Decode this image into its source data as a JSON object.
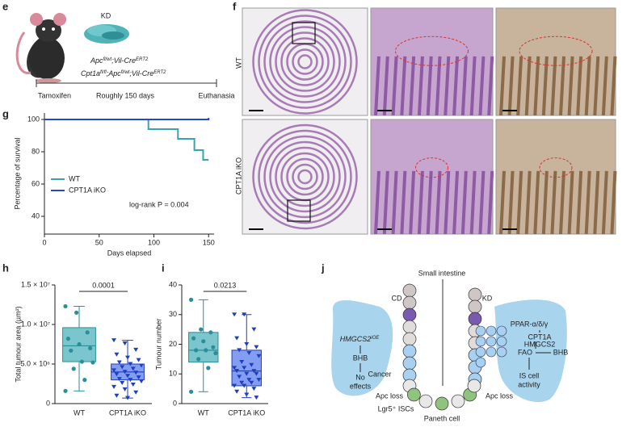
{
  "panel_labels": [
    "e",
    "f",
    "g",
    "h",
    "i",
    "j"
  ],
  "e": {
    "kd": "KD",
    "genotype_1": [
      "Apc",
      "fl/wt",
      ";Vil-Cre",
      "ERT2"
    ],
    "genotype_2": [
      "Cpt1a",
      "fl/fl",
      ";Apc",
      "fl/wt",
      ";Vil-Cre",
      "ERT2"
    ],
    "timeline": [
      "Tamoxifen",
      "Roughly 150 days",
      "Euthanasia"
    ]
  },
  "f": {
    "row_labels": [
      "WT",
      "CPT1A iKO"
    ]
  },
  "j": {
    "title": "Small intestine",
    "cd": "CD",
    "kd": "KD",
    "hmgcs2_ioe": [
      "HMGCS2",
      "iOE"
    ],
    "bhb_left": "BHB",
    "no_effects": [
      "No",
      "effects"
    ],
    "cancer": "Cancer",
    "apc_loss_left": "Apc loss",
    "lgr5": "Lgr5⁺ ISCs",
    "paneth": "Paneth cell",
    "apc_loss_right": "Apc loss",
    "ppar": "PPAR-α/δ/γ",
    "cpt1a": "CPT1A",
    "hmgcs2": "HMGCS2",
    "fao": "FAO",
    "bhb_right": "BHB",
    "is_cell": [
      "IS cell",
      "activity"
    ]
  },
  "chart_data": [
    {
      "type": "line",
      "x_label": "Days elapsed",
      "y_label": "Percentage of survival",
      "xlim": [
        0,
        155
      ],
      "ylim": [
        29,
        104
      ],
      "xticks": [
        0,
        50,
        100,
        150
      ],
      "yticks": [
        40,
        60,
        80,
        100
      ],
      "annotation": "log-rank P = 0.004",
      "series": [
        {
          "name": "WT",
          "color": "#3aa3ad",
          "x": [
            0,
            95,
            95,
            122,
            122,
            137,
            137,
            145,
            145,
            150
          ],
          "values": [
            100,
            100,
            94,
            94,
            88,
            88,
            81,
            81,
            75,
            75
          ]
        },
        {
          "name": "CPT1A iKO",
          "color": "#2846c8",
          "x": [
            0,
            150,
            150
          ],
          "values": [
            100,
            100,
            101
          ]
        }
      ]
    },
    {
      "type": "box",
      "y_label": "Total tumour area (µm²)",
      "categories": [
        "WT",
        "CPT1A iKO"
      ],
      "ylim": [
        0,
        15000000
      ],
      "yticks": [
        0,
        {
          "value": 5000000,
          "label": "5.0 × 10⁶"
        },
        {
          "value": 10000000,
          "label": "1.0 × 10⁷"
        },
        {
          "value": 15000000,
          "label": "1.5 × 10⁷"
        }
      ],
      "annotation": "0.0001",
      "boxes": [
        {
          "color": "#2a8f99",
          "fill": "#4fb3bc",
          "min": 1600000,
          "q1": 5300000,
          "median": 7300000,
          "q3": 9600000,
          "max": 12300000,
          "points": [
            12300000,
            11500000,
            9000000,
            8200000,
            7500000,
            7000000,
            6700000,
            5300000,
            5200000,
            4400000,
            3000000,
            1600000
          ]
        },
        {
          "color": "#1f3fbf",
          "fill": "#5b7cf0",
          "min": 700000,
          "q1": 3000000,
          "median": 4000000,
          "q3": 5000000,
          "max": 8000000,
          "points": [
            8000000,
            7600000,
            6800000,
            6200000,
            5800000,
            5500000,
            5200000,
            5000000,
            4800000,
            4600000,
            4400000,
            4200000,
            4000000,
            3900000,
            3700000,
            3500000,
            3300000,
            3100000,
            3000000,
            2800000,
            2600000,
            2400000,
            2100000,
            1800000,
            1400000,
            1000000,
            700000
          ]
        }
      ]
    },
    {
      "type": "box",
      "y_label": "Tumour number",
      "categories": [
        "WT",
        "CPT1A iKO"
      ],
      "ylim": [
        0,
        40
      ],
      "yticks": [
        0,
        10,
        20,
        30,
        40
      ],
      "annotation": "0.0213",
      "boxes": [
        {
          "color": "#2a8f99",
          "fill": "#4fb3bc",
          "min": 4,
          "q1": 14,
          "median": 18,
          "q3": 24,
          "max": 35,
          "points": [
            35,
            25,
            24,
            22,
            21,
            19,
            18,
            18,
            17,
            15,
            12,
            4
          ]
        },
        {
          "color": "#1f3fbf",
          "fill": "#5b7cf0",
          "min": 2,
          "q1": 6,
          "median": 11,
          "q3": 18,
          "max": 30,
          "points": [
            30,
            30,
            25,
            22,
            20,
            19,
            18,
            17,
            16,
            14,
            13,
            12,
            12,
            11,
            11,
            10,
            10,
            9,
            8,
            8,
            7,
            7,
            6,
            6,
            5,
            4,
            3,
            2
          ]
        }
      ]
    }
  ]
}
